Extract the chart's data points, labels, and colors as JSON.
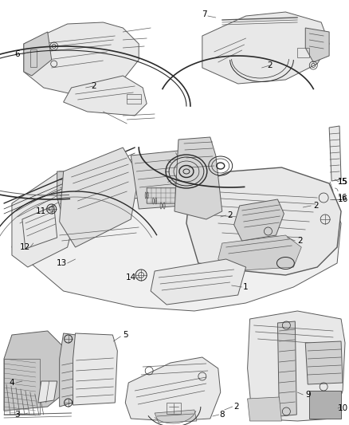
{
  "bg_color": "#ffffff",
  "fig_width": 4.38,
  "fig_height": 5.33,
  "dpi": 100,
  "label_fontsize": 7.5,
  "label_color": "#000000",
  "line_color": "#5a5a5a",
  "dark_color": "#2a2a2a",
  "light_color": "#c0c0c0",
  "fill_light": "#e8e8e8",
  "fill_mid": "#d0d0d0",
  "fill_dark": "#b0b0b0"
}
